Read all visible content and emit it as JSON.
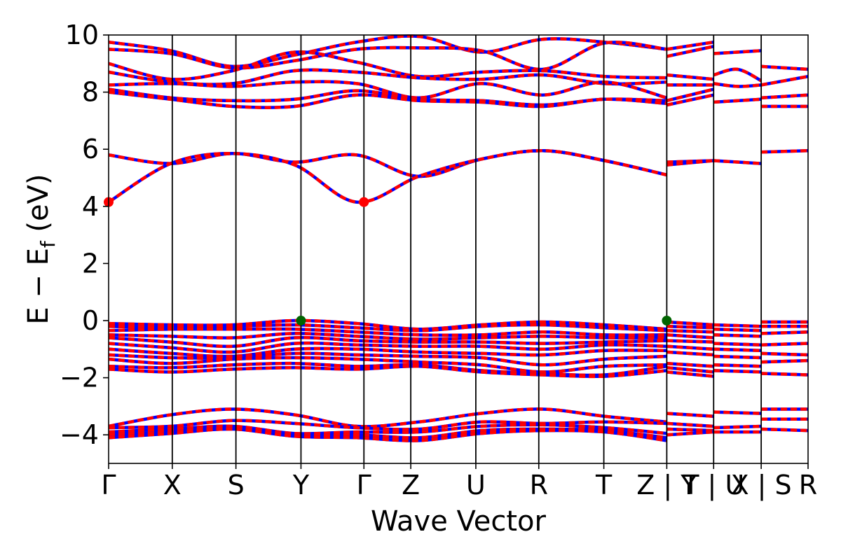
{
  "chart_data": {
    "type": "line",
    "xlabel": "Wave Vector",
    "ylabel": "E − E_f (eV)",
    "ylabel_parts": {
      "main": "E − E",
      "sub": "f",
      "unit": " (eV)"
    },
    "ylim": [
      -5,
      10
    ],
    "xlim": [
      0,
      1
    ],
    "y_ticks": [
      "−4",
      "−2",
      "0",
      "2",
      "4",
      "6",
      "8",
      "10"
    ],
    "y_tick_values": [
      -4,
      -2,
      0,
      2,
      4,
      6,
      8,
      10
    ],
    "k_points": [
      {
        "label": "Γ",
        "x": 0.0
      },
      {
        "label": "X",
        "x": 0.091
      },
      {
        "label": "S",
        "x": 0.182
      },
      {
        "label": "Y",
        "x": 0.275
      },
      {
        "label": "Γ",
        "x": 0.365
      },
      {
        "label": "Z",
        "x": 0.432
      },
      {
        "label": "U",
        "x": 0.525
      },
      {
        "label": "R",
        "x": 0.615
      },
      {
        "label": "T",
        "x": 0.708
      },
      {
        "label": "Z | Y",
        "x": 0.798
      },
      {
        "label": "T | U",
        "x": 0.865
      },
      {
        "label": "X | S",
        "x": 0.933
      },
      {
        "label": "R",
        "x": 1.0
      }
    ],
    "vertical_lines": [
      0.091,
      0.182,
      0.275,
      0.365,
      0.432,
      0.525,
      0.615,
      0.708,
      0.798,
      0.865,
      0.933
    ],
    "series": [
      {
        "color": "#ff0000",
        "dash_color": "#0000ff"
      }
    ],
    "segments": [
      {
        "x_start": 0.0,
        "x_end": 0.798,
        "bands": [
          [
            9.75,
            9.45,
            8.9,
            9.3,
            9.75,
            9.95,
            9.4,
            9.85,
            9.75,
            9.5
          ],
          [
            9.5,
            9.35,
            8.85,
            9.1,
            9.5,
            9.55,
            9.45,
            8.8,
            9.72,
            9.5
          ],
          [
            9.0,
            8.45,
            8.75,
            9.4,
            9.05,
            8.55,
            8.7,
            8.75,
            8.55,
            8.5
          ],
          [
            8.7,
            8.35,
            8.3,
            8.75,
            8.7,
            8.5,
            8.45,
            8.6,
            8.3,
            8.35
          ],
          [
            8.25,
            8.3,
            8.2,
            8.35,
            8.3,
            7.8,
            8.3,
            7.9,
            8.35,
            7.8
          ],
          [
            8.1,
            7.8,
            7.7,
            7.75,
            8.05,
            7.75,
            7.7,
            7.55,
            7.75,
            7.7
          ],
          [
            8.0,
            7.75,
            7.5,
            7.5,
            7.9,
            7.7,
            7.65,
            7.5,
            7.75,
            7.6
          ],
          [
            5.8,
            5.5,
            5.85,
            5.55,
            5.8,
            5.05,
            5.65,
            5.95,
            5.6,
            5.1
          ],
          [
            4.15,
            5.5,
            5.85,
            5.45,
            4.15,
            5.05,
            5.65,
            5.95,
            5.6,
            5.1
          ],
          [
            -0.1,
            -0.15,
            -0.15,
            0.0,
            -0.1,
            -0.3,
            -0.15,
            -0.05,
            -0.15,
            -0.3
          ],
          [
            -0.2,
            -0.25,
            -0.2,
            -0.15,
            -0.25,
            -0.35,
            -0.2,
            -0.15,
            -0.25,
            -0.35
          ],
          [
            -0.35,
            -0.3,
            -0.3,
            -0.3,
            -0.4,
            -0.5,
            -0.5,
            -0.4,
            -0.5,
            -0.5
          ],
          [
            -0.5,
            -0.55,
            -0.6,
            -0.45,
            -0.55,
            -0.65,
            -0.6,
            -0.55,
            -0.6,
            -0.6
          ],
          [
            -0.6,
            -0.75,
            -0.9,
            -0.6,
            -0.7,
            -0.75,
            -0.75,
            -0.8,
            -0.75,
            -0.7
          ],
          [
            -0.8,
            -0.95,
            -1.1,
            -0.8,
            -0.85,
            -0.9,
            -0.9,
            -1.0,
            -0.85,
            -0.9
          ],
          [
            -1.0,
            -1.15,
            -1.25,
            -1.0,
            -1.0,
            -1.1,
            -1.15,
            -1.2,
            -1.05,
            -1.05
          ],
          [
            -1.2,
            -1.3,
            -1.3,
            -1.15,
            -1.2,
            -1.25,
            -1.3,
            -1.55,
            -1.35,
            -1.25
          ],
          [
            -1.35,
            -1.5,
            -1.35,
            -1.3,
            -1.35,
            -1.45,
            -1.55,
            -1.8,
            -1.6,
            -1.55
          ],
          [
            -1.6,
            -1.65,
            -1.55,
            -1.5,
            -1.6,
            -1.55,
            -1.75,
            -1.85,
            -1.9,
            -1.6
          ],
          [
            -1.7,
            -1.8,
            -1.7,
            -1.65,
            -1.7,
            -1.6,
            -1.8,
            -1.9,
            -1.95,
            -1.75
          ],
          [
            -3.7,
            -3.3,
            -3.1,
            -3.3,
            -3.7,
            -3.55,
            -3.25,
            -3.1,
            -3.35,
            -3.55
          ],
          [
            -3.75,
            -3.7,
            -3.5,
            -3.6,
            -3.75,
            -3.8,
            -3.55,
            -3.6,
            -3.55,
            -3.6
          ],
          [
            -3.9,
            -3.8,
            -3.7,
            -3.95,
            -3.9,
            -3.9,
            -3.7,
            -3.65,
            -3.75,
            -3.95
          ],
          [
            -4.0,
            -3.9,
            -3.75,
            -4.0,
            -4.0,
            -4.1,
            -3.85,
            -3.8,
            -3.85,
            -4.1
          ],
          [
            -4.1,
            -3.95,
            -3.8,
            -4.05,
            -4.1,
            -4.2,
            -3.95,
            -3.85,
            -3.9,
            -4.2
          ]
        ]
      },
      {
        "x_start": 0.798,
        "x_end": 0.865,
        "bands": [
          [
            9.5,
            9.75
          ],
          [
            9.25,
            9.6
          ],
          [
            8.6,
            8.45
          ],
          [
            8.25,
            8.25
          ],
          [
            7.7,
            8.1
          ],
          [
            7.55,
            7.9
          ],
          [
            5.55,
            5.6
          ],
          [
            5.45,
            5.6
          ],
          [
            -0.05,
            -0.15
          ],
          [
            -0.2,
            -0.25
          ],
          [
            -0.35,
            -0.4
          ],
          [
            -0.5,
            -0.6
          ],
          [
            -0.7,
            -0.75
          ],
          [
            -0.9,
            -1.0
          ],
          [
            -1.1,
            -1.2
          ],
          [
            -1.5,
            -1.6
          ],
          [
            -1.65,
            -1.8
          ],
          [
            -1.8,
            -1.95
          ],
          [
            -3.25,
            -3.35
          ],
          [
            -3.6,
            -3.7
          ],
          [
            -3.8,
            -3.85
          ],
          [
            -4.0,
            -3.9
          ]
        ]
      },
      {
        "x_start": 0.865,
        "x_end": 0.933,
        "bands": [
          [
            9.35,
            9.45
          ],
          [
            8.6,
            8.8,
            8.4
          ],
          [
            8.3,
            8.2,
            8.25
          ],
          [
            7.65,
            7.75
          ],
          [
            5.6,
            5.5
          ],
          [
            -0.15,
            -0.2
          ],
          [
            -0.3,
            -0.35
          ],
          [
            -0.5,
            -0.55
          ],
          [
            -0.8,
            -0.85
          ],
          [
            -1.0,
            -1.05
          ],
          [
            -1.25,
            -1.3
          ],
          [
            -1.55,
            -1.6
          ],
          [
            -1.75,
            -1.8
          ],
          [
            -3.2,
            -3.25
          ],
          [
            -3.75,
            -3.7
          ],
          [
            -3.9,
            -3.9
          ]
        ]
      },
      {
        "x_start": 0.933,
        "x_end": 1.0,
        "bands": [
          [
            8.9,
            8.8
          ],
          [
            8.25,
            8.55
          ],
          [
            7.8,
            7.9
          ],
          [
            7.5,
            7.5
          ],
          [
            5.9,
            5.95
          ],
          [
            -0.05,
            -0.05
          ],
          [
            -0.2,
            -0.2
          ],
          [
            -0.45,
            -0.4
          ],
          [
            -0.85,
            -0.8
          ],
          [
            -1.15,
            -1.2
          ],
          [
            -1.45,
            -1.4
          ],
          [
            -1.85,
            -1.9
          ],
          [
            -3.1,
            -3.1
          ],
          [
            -3.45,
            -3.45
          ],
          [
            -3.8,
            -3.85
          ]
        ]
      }
    ],
    "markers": [
      {
        "x": 0.0,
        "y": 4.15,
        "color": "#ff0000"
      },
      {
        "x": 0.365,
        "y": 4.15,
        "color": "#ff0000"
      },
      {
        "x": 0.275,
        "y": 0.0,
        "color": "#006400"
      },
      {
        "x": 0.798,
        "y": 0.0,
        "color": "#006400"
      }
    ],
    "grid": false
  }
}
